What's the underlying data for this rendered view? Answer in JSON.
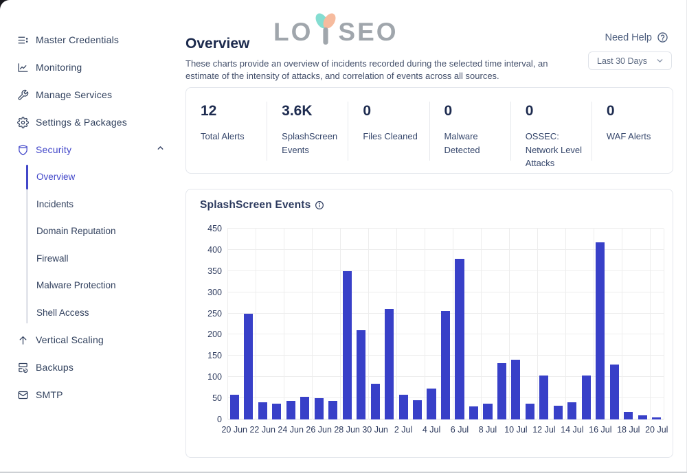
{
  "header": {
    "title": "Overview",
    "logo_left": "LO",
    "logo_right": "SEO",
    "need_help_label": "Need Help",
    "description": "These charts provide an overview of incidents recorded during the selected time interval, an estimate of the intensity of attacks, and correlation of events across all sources.",
    "time_range_selected": "Last 30 Days"
  },
  "sidebar": {
    "items": [
      {
        "label": "Master Credentials",
        "icon": "credentials-list-icon"
      },
      {
        "label": "Monitoring",
        "icon": "monitoring-chart-icon"
      },
      {
        "label": "Manage Services",
        "icon": "wrench-icon"
      },
      {
        "label": "Settings & Packages",
        "icon": "gear-icon"
      },
      {
        "label": "Security",
        "icon": "shield-icon",
        "expanded": true,
        "active": true
      },
      {
        "label": "Vertical Scaling",
        "icon": "arrow-up-icon"
      },
      {
        "label": "Backups",
        "icon": "backup-server-icon"
      },
      {
        "label": "SMTP",
        "icon": "envelope-icon"
      }
    ],
    "security_submenu": [
      {
        "label": "Overview",
        "active": true
      },
      {
        "label": "Incidents",
        "active": false
      },
      {
        "label": "Domain Reputation",
        "active": false
      },
      {
        "label": "Firewall",
        "active": false
      },
      {
        "label": "Malware Protection",
        "active": false
      },
      {
        "label": "Shell Access",
        "active": false
      }
    ]
  },
  "stats": [
    {
      "value": "12",
      "label": "Total Alerts"
    },
    {
      "value": "3.6K",
      "label": "SplashScreen Events"
    },
    {
      "value": "0",
      "label": "Files Cleaned"
    },
    {
      "value": "0",
      "label": "Malware Detected"
    },
    {
      "value": "0",
      "label": "OSSEC: Network Level Attacks"
    },
    {
      "value": "0",
      "label": "WAF Alerts"
    }
  ],
  "chart_data": {
    "type": "bar",
    "title": "SplashScreen Events",
    "categories": [
      "20 Jun",
      "21 Jun",
      "22 Jun",
      "23 Jun",
      "24 Jun",
      "25 Jun",
      "26 Jun",
      "27 Jun",
      "28 Jun",
      "29 Jun",
      "30 Jun",
      "1 Jul",
      "2 Jul",
      "3 Jul",
      "4 Jul",
      "5 Jul",
      "6 Jul",
      "7 Jul",
      "8 Jul",
      "9 Jul",
      "10 Jul",
      "11 Jul",
      "12 Jul",
      "13 Jul",
      "14 Jul",
      "15 Jul",
      "16 Jul",
      "17 Jul",
      "18 Jul",
      "19 Jul",
      "20 Jul"
    ],
    "values": [
      58,
      250,
      41,
      38,
      43,
      54,
      51,
      43,
      350,
      211,
      84,
      260,
      58,
      46,
      73,
      255,
      378,
      31,
      37,
      133,
      141,
      37,
      103,
      33,
      40,
      103,
      418,
      130,
      18,
      10,
      5
    ],
    "x_tick_labels": [
      "20 Jun",
      "22 Jun",
      "24 Jun",
      "26 Jun",
      "28 Jun",
      "30 Jun",
      "2 Jul",
      "4 Jul",
      "6 Jul",
      "8 Jul",
      "10 Jul",
      "12 Jul",
      "14 Jul",
      "16 Jul",
      "18 Jul",
      "20 Jul"
    ],
    "ylabel": "",
    "xlabel": "",
    "ylim": [
      0,
      450
    ],
    "y_ticks": [
      0,
      50,
      100,
      150,
      200,
      250,
      300,
      350,
      400,
      450
    ],
    "grid": true,
    "legend": false,
    "bar_color": "#3840c8"
  },
  "colors": {
    "accent_indigo": "#4247c9",
    "bar_blue": "#3840c8",
    "text_dark": "#1c2a4d",
    "text_slate": "#35466b",
    "logo_gray": "#9ba2a8",
    "logo_teal": "#7edccf",
    "logo_salmon": "#f6b899",
    "card_border": "#e3e6ec",
    "grid_gray": "#ededed"
  }
}
